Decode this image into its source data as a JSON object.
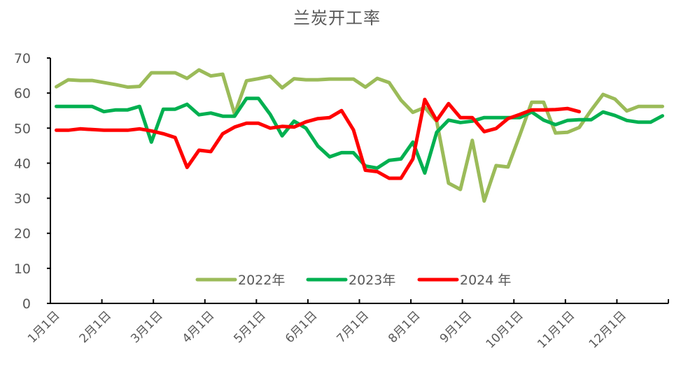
{
  "chart_data": {
    "type": "line",
    "title": "兰炭开工率",
    "xlabel": "",
    "ylabel": "",
    "ylim": [
      0,
      70
    ],
    "yticks": [
      0,
      10,
      20,
      30,
      40,
      50,
      60,
      70
    ],
    "grid": false,
    "legend_position": "bottom-inside",
    "x_tick_labels": [
      "1月1日",
      "2月1日",
      "3月1日",
      "4月1日",
      "5月1日",
      "6月1日",
      "7月1日",
      "8月1日",
      "9月1日",
      "10月1日",
      "11月1日",
      "12月1日"
    ],
    "x_note": "weekly points across a calendar year; x index 0..51",
    "series": [
      {
        "name": "2022年",
        "color": "#9BBB59",
        "values": [
          61.8,
          63.8,
          63.6,
          63.6,
          63.0,
          62.4,
          61.7,
          61.9,
          65.8,
          65.8,
          65.8,
          64.2,
          66.6,
          64.9,
          65.4,
          54.0,
          63.5,
          64.1,
          64.8,
          61.5,
          64.1,
          63.8,
          63.8,
          64.0,
          64.0,
          64.0,
          61.7,
          64.2,
          63.0,
          58.0,
          54.5,
          55.9,
          52.0,
          34.3,
          32.5,
          46.5,
          29.2,
          39.3,
          38.9,
          48.0,
          57.4,
          57.4,
          48.6,
          48.8,
          50.2,
          55.1,
          59.6,
          58.3,
          54.9,
          56.2,
          56.2,
          56.2
        ]
      },
      {
        "name": "2023年",
        "color": "#00B050",
        "values": [
          56.2,
          56.2,
          56.2,
          56.2,
          54.7,
          55.2,
          55.2,
          56.2,
          46.0,
          55.4,
          55.4,
          56.8,
          53.8,
          54.3,
          53.4,
          53.4,
          58.5,
          58.5,
          53.9,
          47.8,
          52.0,
          50.0,
          44.9,
          41.8,
          43.0,
          43.0,
          39.2,
          38.6,
          40.8,
          41.2,
          46.0,
          37.2,
          48.8,
          52.3,
          51.6,
          52.0,
          53.0,
          53.0,
          53.0,
          53.0,
          54.6,
          52.3,
          51.0,
          52.2,
          52.4,
          52.4,
          54.6,
          53.6,
          52.2,
          51.7,
          51.7,
          53.5
        ]
      },
      {
        "name": "2024 年",
        "color": "#FF0000",
        "values": [
          49.4,
          49.4,
          49.8,
          49.6,
          49.4,
          49.4,
          49.4,
          49.8,
          49.2,
          48.4,
          47.3,
          38.8,
          43.7,
          43.3,
          48.4,
          50.3,
          51.4,
          51.4,
          50.0,
          50.5,
          50.3,
          51.8,
          52.7,
          53.0,
          55.0,
          49.5,
          38.0,
          37.6,
          35.7,
          35.7,
          41.2,
          58.2,
          52.2,
          57.0,
          53.0,
          53.0,
          49.0,
          49.9,
          52.7,
          53.9,
          55.2,
          55.2,
          55.3,
          55.6,
          54.7
        ]
      }
    ]
  },
  "legend": {
    "items": [
      {
        "label": "2022年",
        "color": "#9BBB59"
      },
      {
        "label": "2023年",
        "color": "#00B050"
      },
      {
        "label": "2024 年",
        "color": "#FF0000"
      }
    ]
  }
}
